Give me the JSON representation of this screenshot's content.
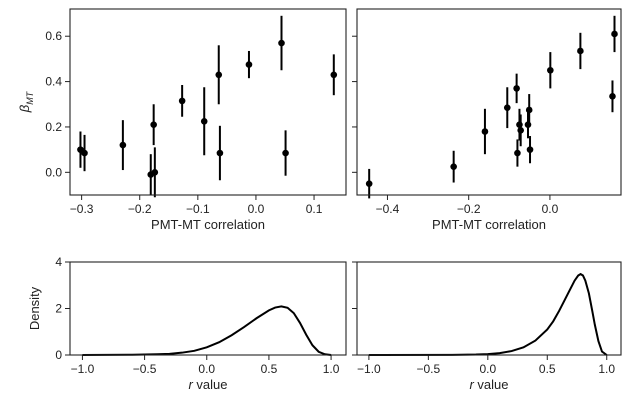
{
  "chart_data": [
    {
      "type": "scatter",
      "xlabel": "PMT-MT correlation",
      "ylabel": "β_MT",
      "ylabel_main": "β",
      "ylabel_sub": "MT",
      "xlim": [
        -0.32,
        0.155
      ],
      "ylim": [
        -0.1,
        0.72
      ],
      "xticks": [
        -0.3,
        -0.2,
        -0.1,
        0.0,
        0.1
      ],
      "xtick_labels": [
        "−0.3",
        "−0.2",
        "−0.1",
        "0.0",
        "0.1"
      ],
      "yticks": [
        0.0,
        0.2,
        0.4,
        0.6
      ],
      "ytick_labels": [
        "0.0",
        "0.2",
        "0.4",
        "0.6"
      ],
      "show_yticklabels": true,
      "points": [
        {
          "x": -0.302,
          "y": 0.1,
          "yerr": 0.08
        },
        {
          "x": -0.295,
          "y": 0.085,
          "yerr": 0.08
        },
        {
          "x": -0.229,
          "y": 0.12,
          "yerr": 0.11
        },
        {
          "x": -0.181,
          "y": -0.01,
          "yerr": 0.09
        },
        {
          "x": -0.176,
          "y": 0.21,
          "yerr": 0.09
        },
        {
          "x": -0.174,
          "y": 0.0,
          "yerr": 0.11
        },
        {
          "x": -0.127,
          "y": 0.315,
          "yerr": 0.07
        },
        {
          "x": -0.089,
          "y": 0.225,
          "yerr": 0.15
        },
        {
          "x": -0.064,
          "y": 0.43,
          "yerr": 0.13
        },
        {
          "x": -0.062,
          "y": 0.085,
          "yerr": 0.12
        },
        {
          "x": -0.012,
          "y": 0.475,
          "yerr": 0.06
        },
        {
          "x": 0.044,
          "y": 0.57,
          "yerr": 0.12
        },
        {
          "x": 0.051,
          "y": 0.085,
          "yerr": 0.1
        },
        {
          "x": 0.134,
          "y": 0.43,
          "yerr": 0.09
        }
      ]
    },
    {
      "type": "scatter",
      "xlabel": "PMT-MT correlation",
      "xlim": [
        -0.475,
        0.175
      ],
      "ylim": [
        -0.1,
        0.72
      ],
      "xticks": [
        -0.4,
        -0.2,
        0.0
      ],
      "xtick_labels": [
        "−0.4",
        "−0.2",
        "0.0"
      ],
      "yticks": [
        0.0,
        0.2,
        0.4,
        0.6
      ],
      "show_yticklabels": false,
      "points": [
        {
          "x": -0.445,
          "y": -0.05,
          "yerr": 0.065
        },
        {
          "x": -0.237,
          "y": 0.025,
          "yerr": 0.07
        },
        {
          "x": -0.16,
          "y": 0.18,
          "yerr": 0.1
        },
        {
          "x": -0.105,
          "y": 0.285,
          "yerr": 0.09
        },
        {
          "x": -0.082,
          "y": 0.37,
          "yerr": 0.065
        },
        {
          "x": -0.08,
          "y": 0.085,
          "yerr": 0.06
        },
        {
          "x": -0.075,
          "y": 0.21,
          "yerr": 0.07
        },
        {
          "x": -0.072,
          "y": 0.185,
          "yerr": 0.07
        },
        {
          "x": -0.054,
          "y": 0.21,
          "yerr": 0.06
        },
        {
          "x": -0.051,
          "y": 0.275,
          "yerr": 0.07
        },
        {
          "x": -0.049,
          "y": 0.1,
          "yerr": 0.06
        },
        {
          "x": 0.001,
          "y": 0.45,
          "yerr": 0.08
        },
        {
          "x": 0.075,
          "y": 0.535,
          "yerr": 0.08
        },
        {
          "x": 0.154,
          "y": 0.335,
          "yerr": 0.07
        },
        {
          "x": 0.159,
          "y": 0.61,
          "yerr": 0.08
        }
      ]
    },
    {
      "type": "line",
      "xlabel_italic": "r",
      "xlabel_rest": " value",
      "ylabel": "Density",
      "xlim": [
        -1.1,
        1.12
      ],
      "ylim": [
        0,
        4
      ],
      "xticks": [
        -1.0,
        -0.5,
        0.0,
        0.5,
        1.0
      ],
      "xtick_labels": [
        "−1.0",
        "−0.5",
        "0.0",
        "0.5",
        "1.0"
      ],
      "yticks": [
        0,
        2,
        4
      ],
      "ytick_labels": [
        "0",
        "2",
        "4"
      ],
      "show_yticklabels": true,
      "series": [
        {
          "x": [
            -1.0,
            -0.6,
            -0.4,
            -0.3,
            -0.2,
            -0.1,
            0.0,
            0.1,
            0.2,
            0.3,
            0.4,
            0.5,
            0.55,
            0.6,
            0.65,
            0.7,
            0.75,
            0.8,
            0.85,
            0.9,
            0.95,
            1.0
          ],
          "y": [
            0.0,
            0.01,
            0.03,
            0.05,
            0.1,
            0.18,
            0.33,
            0.55,
            0.85,
            1.2,
            1.58,
            1.92,
            2.04,
            2.09,
            2.03,
            1.8,
            1.38,
            0.87,
            0.42,
            0.14,
            0.03,
            0.0
          ]
        }
      ]
    },
    {
      "type": "line",
      "xlabel_italic": "r",
      "xlabel_rest": " value",
      "xlim": [
        -1.1,
        1.12
      ],
      "ylim": [
        0,
        4
      ],
      "xticks": [
        -1.0,
        -0.5,
        0.0,
        0.5,
        1.0
      ],
      "xtick_labels": [
        "−1.0",
        "−0.5",
        "0.0",
        "0.5",
        "1.0"
      ],
      "yticks": [
        0,
        2,
        4
      ],
      "show_yticklabels": false,
      "series": [
        {
          "x": [
            -1.0,
            -0.3,
            -0.1,
            0.0,
            0.1,
            0.2,
            0.3,
            0.4,
            0.5,
            0.55,
            0.6,
            0.65,
            0.7,
            0.73,
            0.76,
            0.78,
            0.8,
            0.82,
            0.85,
            0.88,
            0.9,
            0.93,
            0.96,
            1.0
          ],
          "y": [
            0.0,
            0.005,
            0.02,
            0.04,
            0.08,
            0.17,
            0.33,
            0.62,
            1.1,
            1.45,
            1.9,
            2.4,
            2.9,
            3.2,
            3.42,
            3.48,
            3.42,
            3.2,
            2.65,
            1.85,
            1.3,
            0.6,
            0.15,
            0.0
          ]
        }
      ]
    }
  ]
}
